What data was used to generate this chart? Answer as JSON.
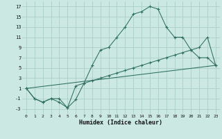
{
  "xlabel": "Humidex (Indice chaleur)",
  "bg_color": "#cce8e2",
  "grid_color": "#aacfc8",
  "line_color": "#2d6e60",
  "xlim": [
    -0.5,
    23.5
  ],
  "ylim": [
    -4,
    18
  ],
  "xticks": [
    0,
    1,
    2,
    3,
    4,
    5,
    6,
    7,
    8,
    9,
    10,
    11,
    12,
    13,
    14,
    15,
    16,
    17,
    18,
    19,
    20,
    21,
    22,
    23
  ],
  "yticks": [
    -3,
    -1,
    1,
    3,
    5,
    7,
    9,
    11,
    13,
    15,
    17
  ],
  "series1_x": [
    0,
    1,
    2,
    3,
    4,
    5,
    6,
    7,
    8,
    9,
    10,
    11,
    12,
    13,
    14,
    15,
    16,
    17,
    18,
    19,
    20,
    21,
    22,
    23
  ],
  "series1_y": [
    1,
    -1,
    -1.7,
    -1,
    -1.7,
    -2.8,
    -1.2,
    2,
    5.5,
    8.5,
    9,
    11,
    13,
    15.5,
    16,
    17,
    16.5,
    13,
    11,
    11,
    8.5,
    7,
    7,
    5.5
  ],
  "series2_x": [
    0,
    1,
    2,
    3,
    4,
    5,
    6,
    7,
    8,
    9,
    10,
    11,
    12,
    13,
    14,
    15,
    16,
    17,
    18,
    19,
    20,
    21,
    22,
    23
  ],
  "series2_y": [
    1,
    -1,
    -1.7,
    -1,
    -1,
    -2.8,
    1.5,
    2,
    2.5,
    3,
    3.5,
    4,
    4.5,
    5,
    5.5,
    6,
    6.5,
    7,
    7.5,
    8,
    8.5,
    9,
    11,
    5.5
  ],
  "series3_x": [
    0,
    23
  ],
  "series3_y": [
    1,
    5.5
  ]
}
